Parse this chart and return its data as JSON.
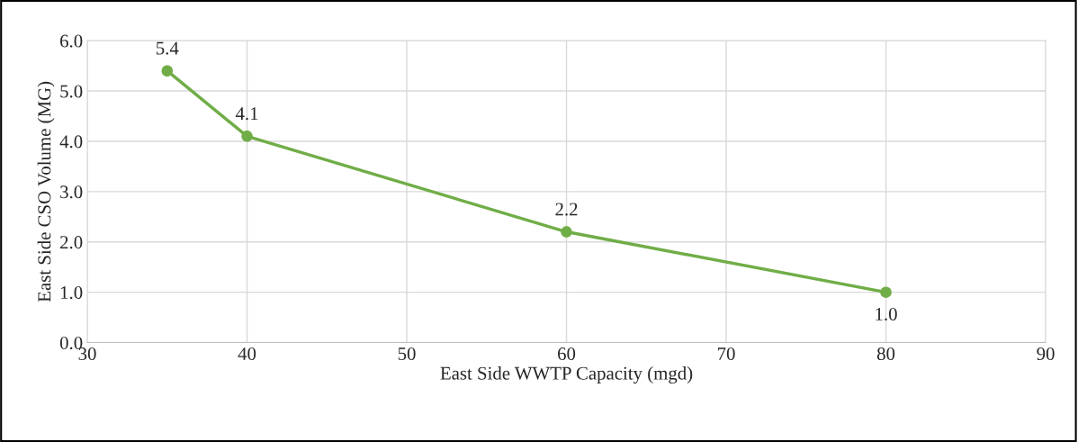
{
  "chart_data": {
    "type": "line",
    "xlabel": "East Side WWTP Capacity (mgd)",
    "ylabel": "East Side CSO Volume (MG)",
    "x": [
      35,
      40,
      60,
      80
    ],
    "series": [
      {
        "color": "#70ad47",
        "values": [
          5.4,
          4.1,
          2.2,
          1.0
        ],
        "value_labels": [
          "5.4",
          "4.1",
          "2.2",
          "1.0"
        ]
      }
    ],
    "xlim": [
      30,
      90
    ],
    "xticks": [
      30,
      40,
      50,
      60,
      70,
      80,
      90
    ],
    "ylim": [
      0,
      6
    ],
    "yticks": [
      {
        "value": 0,
        "label": "0.0"
      },
      {
        "value": 1,
        "label": "1.0"
      },
      {
        "value": 2,
        "label": "2.0"
      },
      {
        "value": 3,
        "label": "3.0"
      },
      {
        "value": 4,
        "label": "4.0"
      },
      {
        "value": 5,
        "label": "5.0"
      },
      {
        "value": 6,
        "label": "6.0"
      }
    ],
    "grid": true,
    "marker": "circle",
    "line_style": "solid",
    "legend": false
  }
}
